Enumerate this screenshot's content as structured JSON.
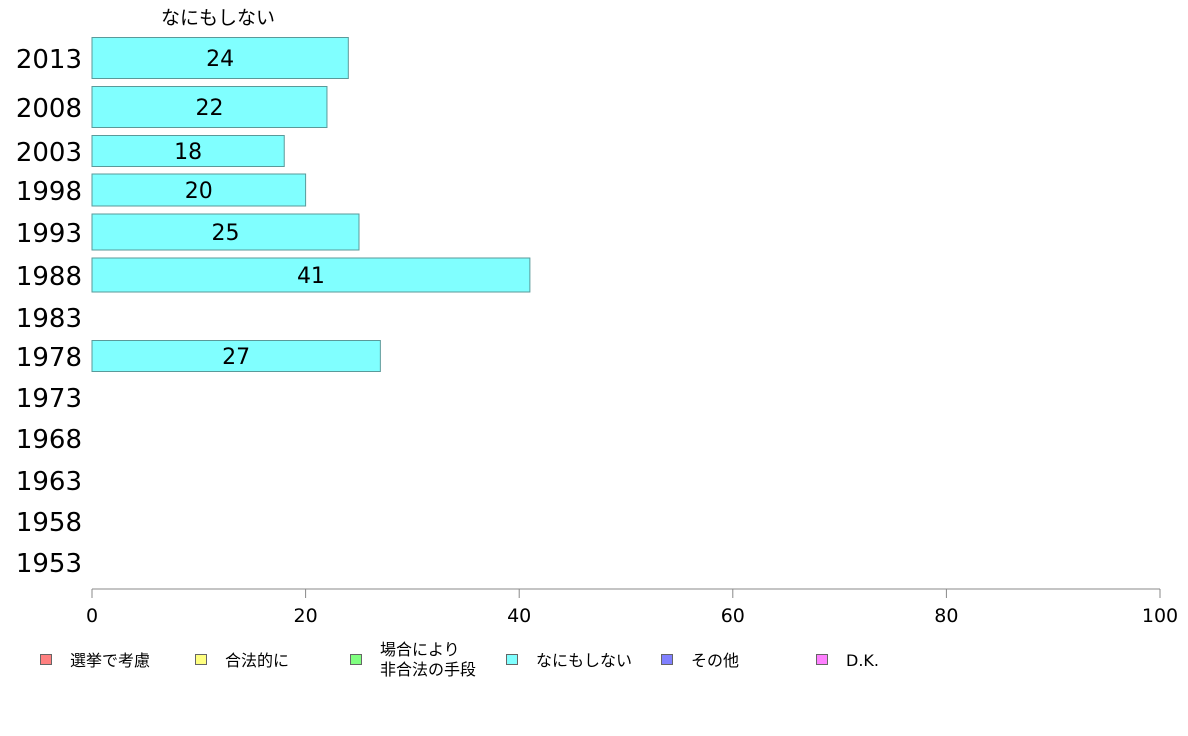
{
  "chart_data": {
    "type": "bar",
    "orientation": "horizontal",
    "title": "なにもしない",
    "categories": [
      "2013",
      "2008",
      "2003",
      "1998",
      "1993",
      "1988",
      "1983",
      "1978",
      "1973",
      "1968",
      "1963",
      "1958",
      "1953"
    ],
    "series": [
      {
        "name": "なにもしない",
        "color": "#80ffff",
        "values": [
          24,
          22,
          18,
          20,
          25,
          41,
          null,
          27,
          null,
          null,
          null,
          null,
          null
        ]
      }
    ],
    "xlim": [
      0,
      100
    ],
    "xticks": [
      0,
      20,
      40,
      60,
      80,
      100
    ],
    "grid": false,
    "legend_position": "bottom"
  },
  "legend": [
    {
      "label": "選挙で考慮",
      "color": "#ff8080"
    },
    {
      "label": "合法的に",
      "color": "#ffff80"
    },
    {
      "label": "場合により\n非合法の手段",
      "color": "#80ff80"
    },
    {
      "label": "なにもしない",
      "color": "#80ffff"
    },
    {
      "label": "その他",
      "color": "#8080ff"
    },
    {
      "label": "D.K.",
      "color": "#ff80ff"
    }
  ]
}
